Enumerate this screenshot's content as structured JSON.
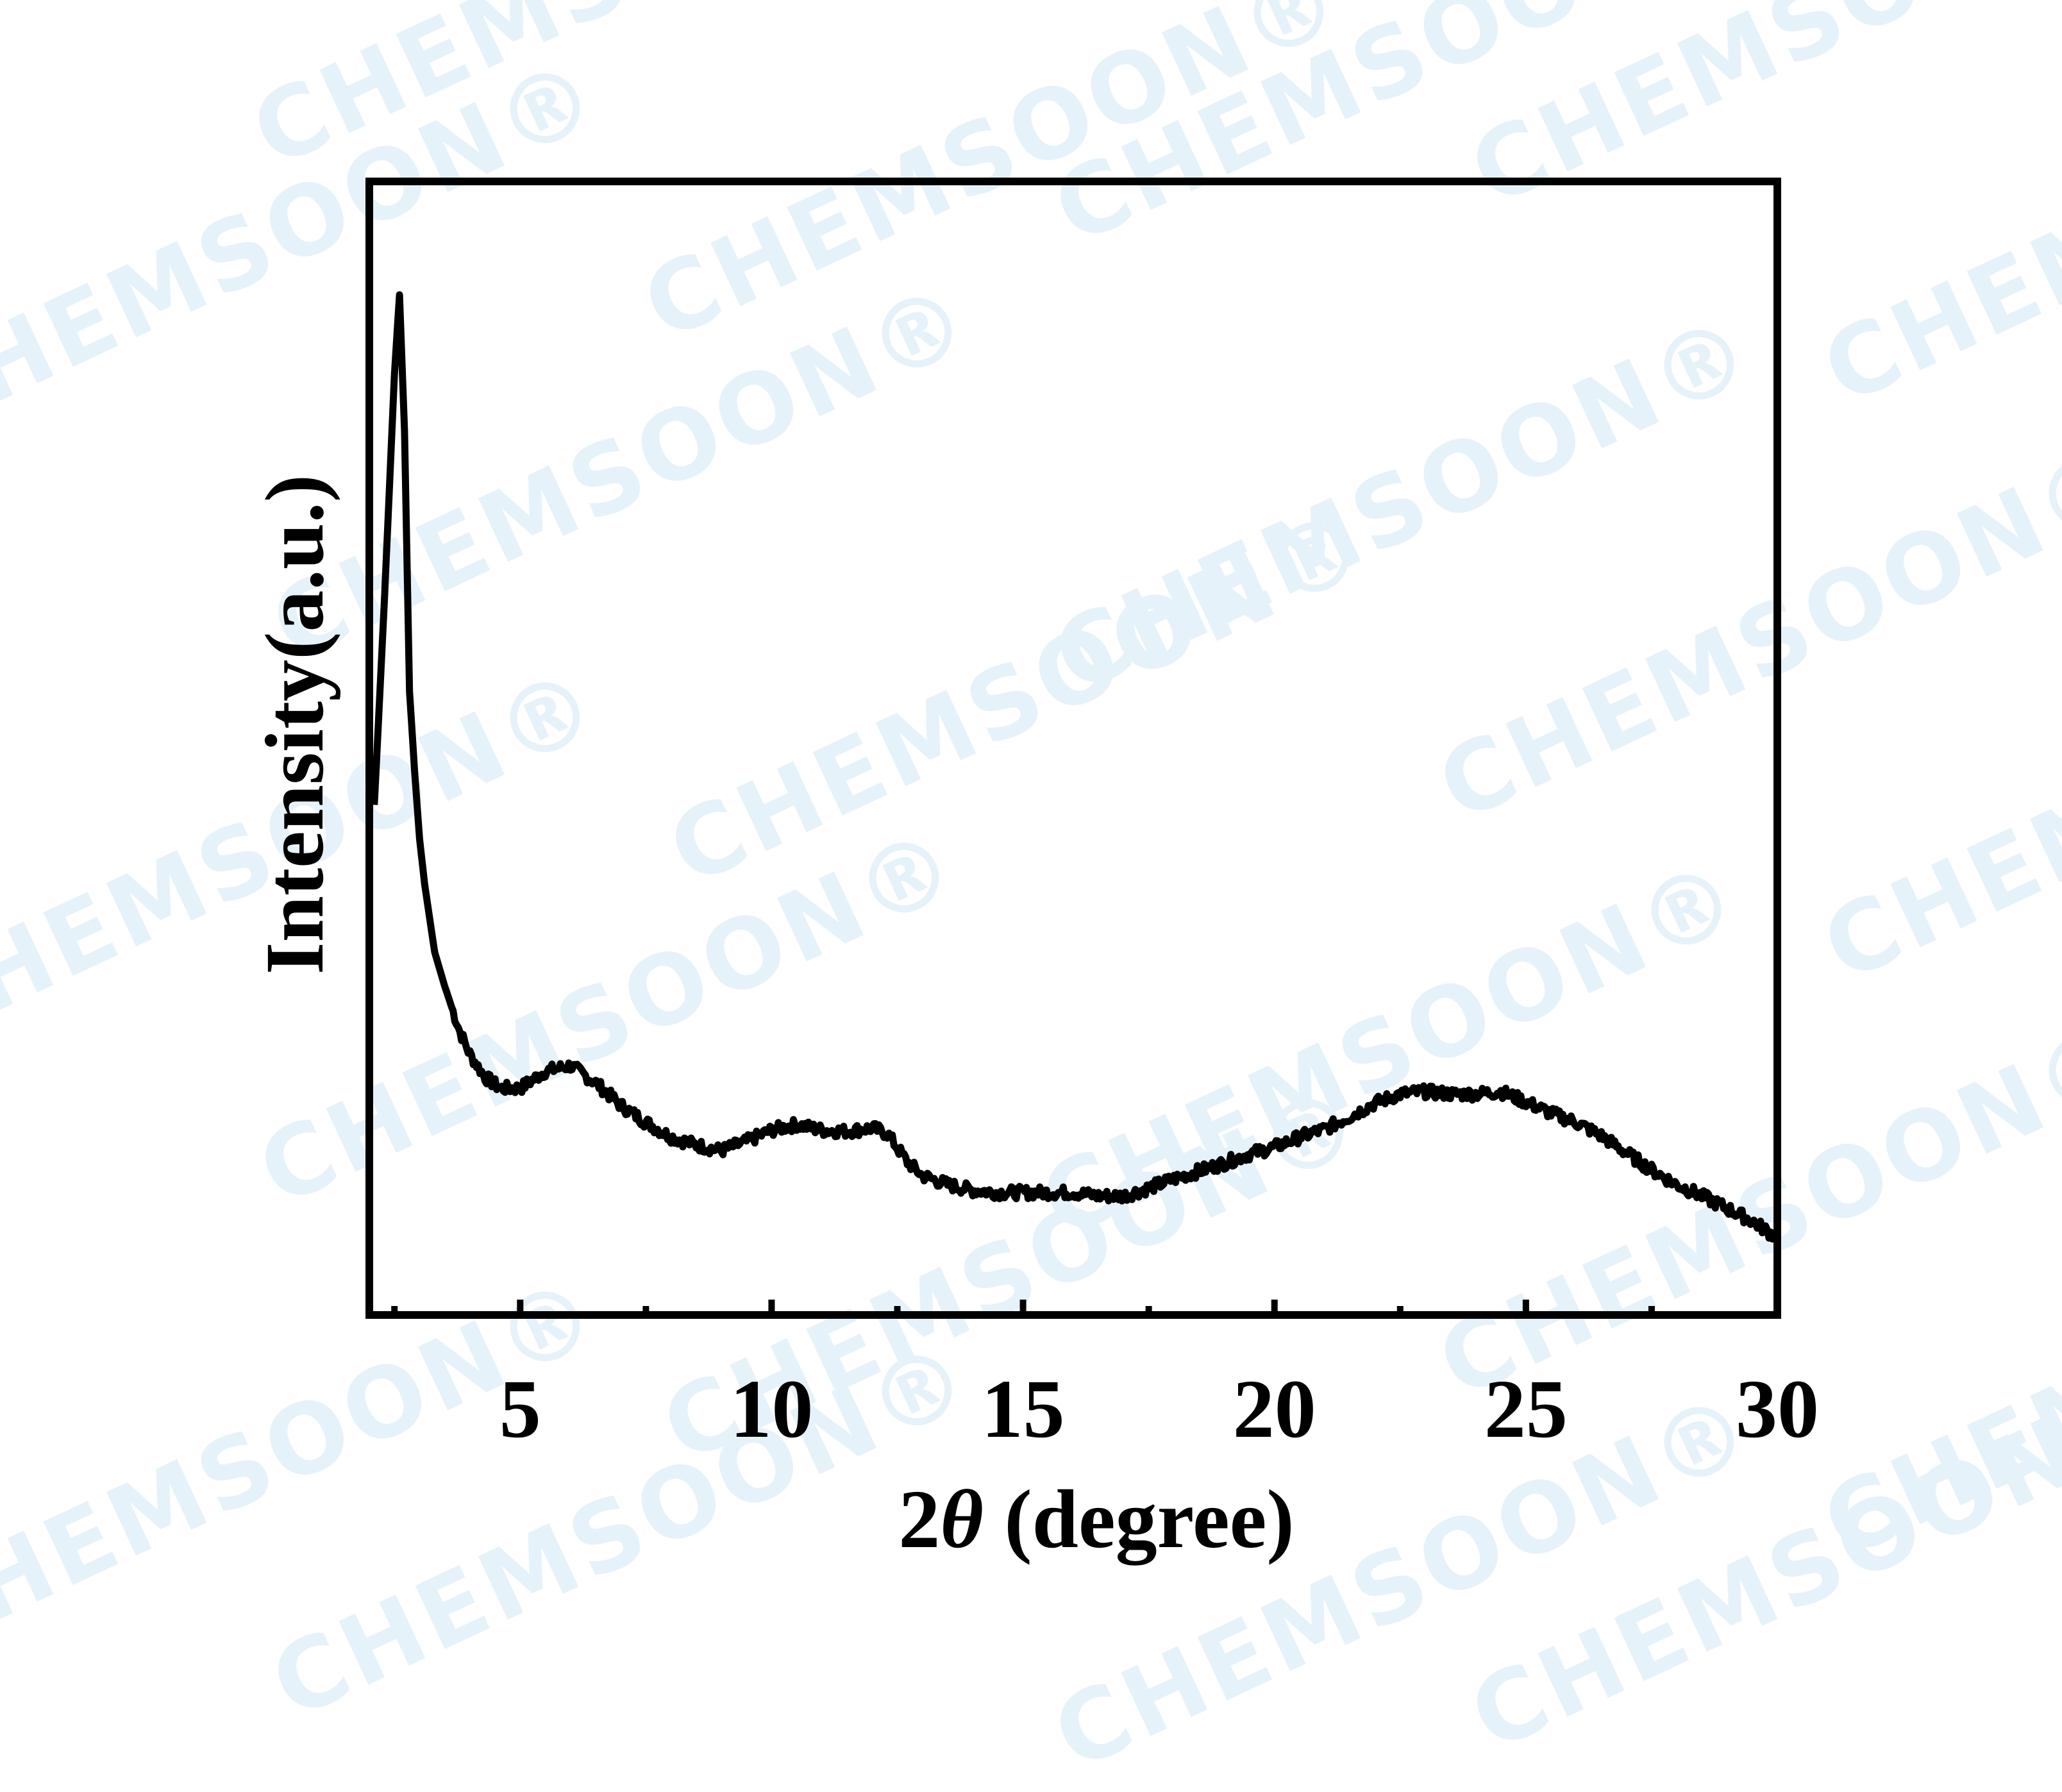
{
  "watermark": {
    "text": "CHEMSOON",
    "mark": "®",
    "color": "#e6f2fa"
  },
  "chart_data": {
    "type": "line",
    "title": "",
    "xlabel_prefix": "2",
    "xlabel_symbol": "θ",
    "xlabel_suffix": " (degree)",
    "ylabel": "Intensity(a.u.)",
    "xlim": [
      2,
      30
    ],
    "ylim": [
      0,
      100
    ],
    "xticks": [
      5,
      10,
      15,
      20,
      25,
      30
    ],
    "minor_xticks": [
      2.5,
      7.5,
      12.5,
      17.5,
      22.5,
      27.5
    ],
    "yticks_shown": false,
    "grid": false,
    "legend": "none",
    "line_color": "#000000",
    "series": [
      {
        "x": [
          2.1,
          2.3,
          2.5,
          2.6,
          2.7,
          2.8,
          2.9,
          3.0,
          3.1,
          3.3,
          3.5,
          3.8,
          4.0,
          4.3,
          4.6,
          5.0,
          5.5,
          6.0,
          6.5,
          7.0,
          7.5,
          8.0,
          8.5,
          9.0,
          9.5,
          10.0,
          10.5,
          11.0,
          11.5,
          12.0,
          12.3,
          12.7,
          13.0,
          13.5,
          14.0,
          14.5,
          15.0,
          15.5,
          16.0,
          16.5,
          17.0,
          17.5,
          18.0,
          18.5,
          19.0,
          19.5,
          20.0,
          20.5,
          21.0,
          21.5,
          22.0,
          22.5,
          23.0,
          23.5,
          24.0,
          24.5,
          25.0,
          25.5,
          26.0,
          26.5,
          27.0,
          27.5,
          28.0,
          28.5,
          29.0,
          29.5,
          30.0
        ],
        "y": [
          45,
          63,
          83,
          90,
          78,
          55,
          48,
          42,
          38,
          32,
          29,
          25,
          23,
          21,
          20,
          20,
          21.5,
          22,
          20.5,
          18.5,
          17,
          15.7,
          15,
          14.5,
          15.3,
          16.3,
          16.8,
          16.3,
          16.2,
          16.5,
          16,
          13.5,
          12.3,
          11.5,
          11,
          10.8,
          10.8,
          10.8,
          10.8,
          10.5,
          10.5,
          11.2,
          12,
          12.7,
          13.4,
          14.2,
          14.8,
          15.7,
          16.4,
          17.5,
          18.7,
          19.5,
          19.7,
          19.5,
          19.5,
          19.7,
          18.8,
          17.8,
          17,
          15.8,
          14.3,
          12.8,
          11.5,
          10.5,
          9.4,
          8.3,
          6.8
        ]
      }
    ]
  }
}
